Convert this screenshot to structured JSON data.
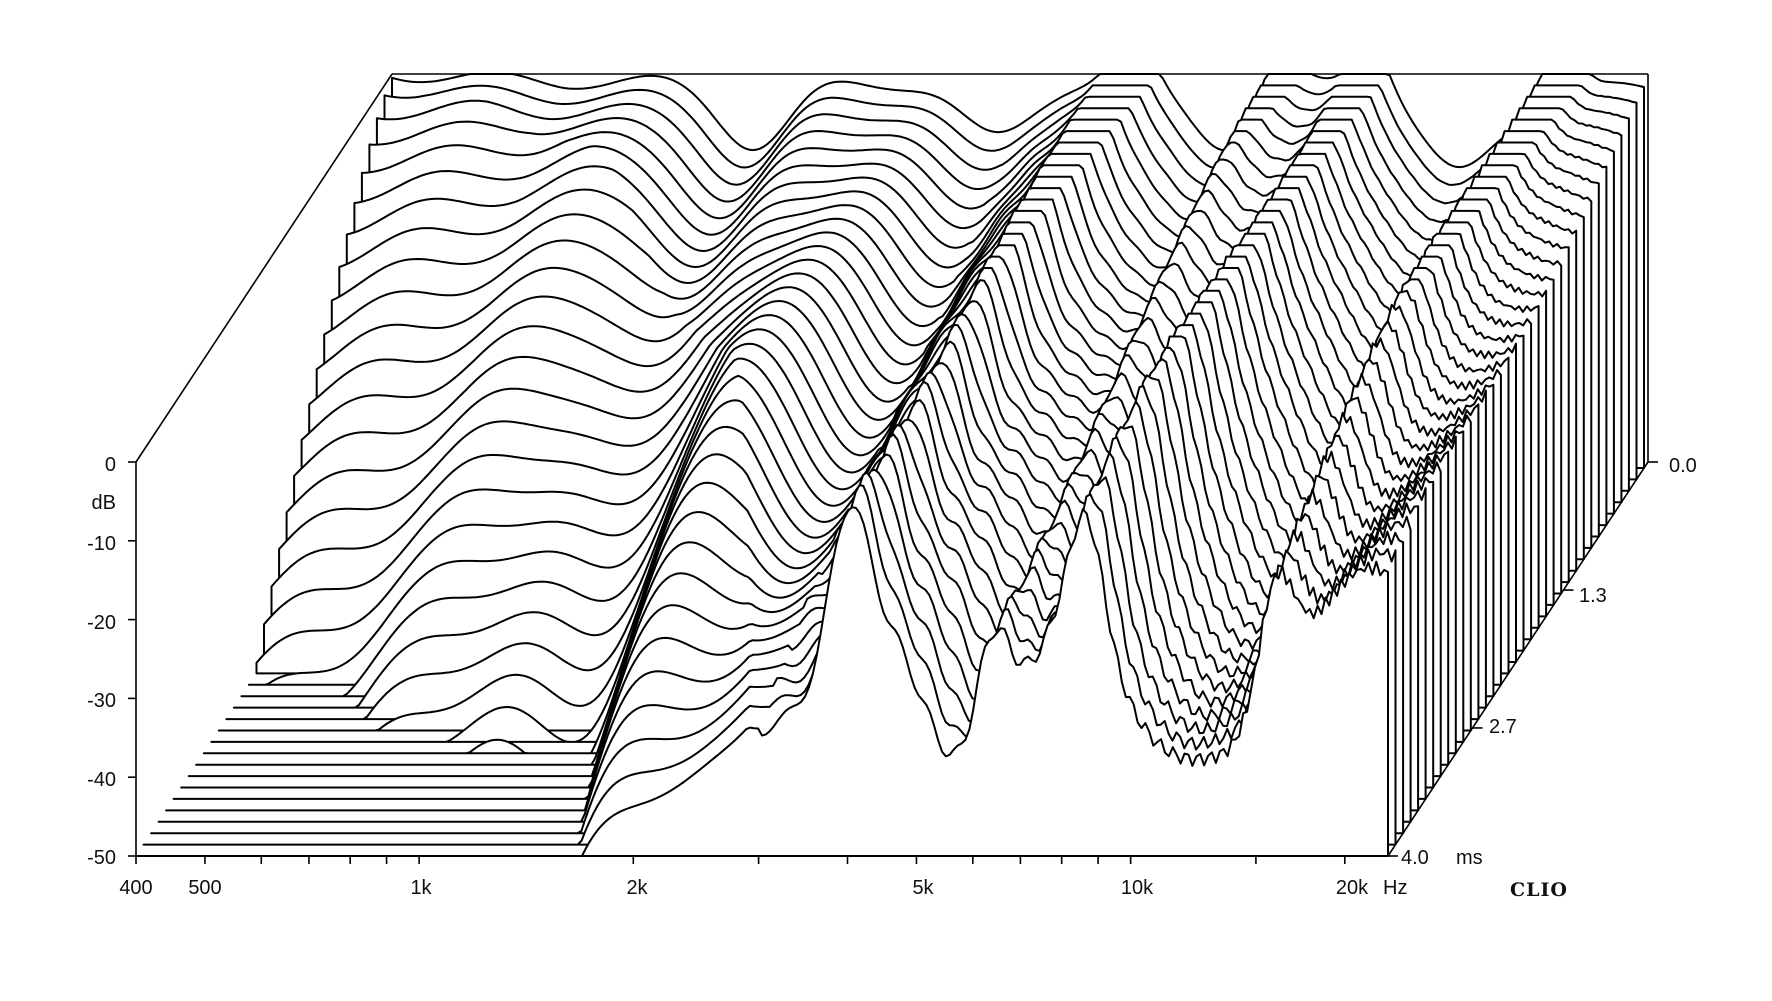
{
  "chart_data": {
    "type": "waterfall-3d",
    "x_axis": {
      "scale": "log",
      "range": [
        400,
        23000
      ],
      "tick_labels": [
        "400",
        "500",
        "1k",
        "2k",
        "5k",
        "10k",
        "20k"
      ],
      "tick_values": [
        400,
        500,
        1000,
        2000,
        5000,
        10000,
        20000
      ],
      "minor_ticks": [
        600,
        700,
        800,
        900,
        3000,
        4000,
        6000,
        7000,
        8000,
        9000,
        15000
      ],
      "unit": "Hz"
    },
    "y_axis": {
      "range": [
        -50,
        0
      ],
      "tick_labels": [
        "0",
        "-10",
        "-20",
        "-30",
        "-40",
        "-50"
      ],
      "tick_values": [
        0,
        -10,
        -20,
        -30,
        -40,
        -50
      ],
      "unit": "dB"
    },
    "z_axis": {
      "range": [
        0.0,
        4.0
      ],
      "tick_labels": [
        "0.0",
        "1.3",
        "2.7",
        "4.0"
      ],
      "tick_values": [
        0.0,
        1.3,
        2.7,
        4.0
      ],
      "unit": "ms"
    },
    "slices": 35,
    "time_start_ms": 0.0,
    "time_end_ms": 4.0,
    "initial_response": [
      {
        "x": 400,
        "y": 0
      },
      {
        "x": 700,
        "y": -1
      },
      {
        "x": 1000,
        "y": -1
      },
      {
        "x": 2000,
        "y": -1
      },
      {
        "x": 5000,
        "y": -1
      },
      {
        "x": 10000,
        "y": -1
      },
      {
        "x": 15000,
        "y": -4
      },
      {
        "x": 17500,
        "y": -1
      },
      {
        "x": 20000,
        "y": -2
      }
    ],
    "dips": [
      {
        "x": 1300,
        "y": -10,
        "depth": 8
      },
      {
        "x": 2800,
        "y": -6,
        "depth": 7
      },
      {
        "x": 6000,
        "y": -14,
        "depth": 8
      },
      {
        "x": 12500,
        "y": -20,
        "depth": 10
      }
    ],
    "resonance_peaks": [
      {
        "x": 4400,
        "persists_to_ms": 4.0
      },
      {
        "x": 7000,
        "persists_to_ms": 4.0
      },
      {
        "x": 9500,
        "persists_to_ms": 4.0
      },
      {
        "x": 17500,
        "persists_to_ms": 4.0
      }
    ],
    "grid": false
  },
  "brand_label": "CLIO"
}
